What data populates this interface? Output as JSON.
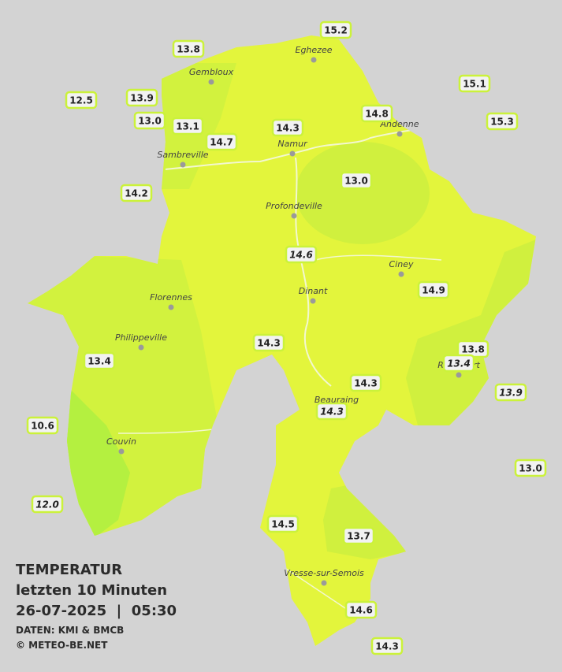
{
  "header": {
    "title": "TEMPERATUR",
    "subtitle": "letzten 10 Minuten",
    "timestamp": "26-07-2025  |  05:30",
    "source": "DATEN: KMI & BMCB",
    "copyright": "© METEO-BE.NET"
  },
  "cities": [
    {
      "name": "Eghezee"
    },
    {
      "name": "Gembloux"
    },
    {
      "name": "Andenne"
    },
    {
      "name": "Namur"
    },
    {
      "name": "Sambreville"
    },
    {
      "name": "Profondeville"
    },
    {
      "name": "Ciney"
    },
    {
      "name": "Dinant"
    },
    {
      "name": "Florennes"
    },
    {
      "name": "Philippeville"
    },
    {
      "name": "Beauraing"
    },
    {
      "name": "Rochefort"
    },
    {
      "name": "Couvin"
    },
    {
      "name": "Vresse-sur-Semois"
    }
  ],
  "stations": [
    {
      "label": "13.8"
    },
    {
      "label": "15.2"
    },
    {
      "label": "12.5"
    },
    {
      "label": "13.9"
    },
    {
      "label": "13.0"
    },
    {
      "label": "13.1"
    },
    {
      "label": "14.7"
    },
    {
      "label": "14.3"
    },
    {
      "label": "14.8"
    },
    {
      "label": "15.1"
    },
    {
      "label": "15.3"
    },
    {
      "label": "14.2"
    },
    {
      "label": "13.0"
    },
    {
      "label": "14.6",
      "italic": true
    },
    {
      "label": "14.9"
    },
    {
      "label": "14.3"
    },
    {
      "label": "13.4"
    },
    {
      "label": "13.8"
    },
    {
      "label": "13.4",
      "italic": true
    },
    {
      "label": "13.9",
      "italic": true
    },
    {
      "label": "14.3"
    },
    {
      "label": "14.3",
      "italic": true
    },
    {
      "label": "10.6"
    },
    {
      "label": "13.0"
    },
    {
      "label": "12.0",
      "italic": true
    },
    {
      "label": "14.5"
    },
    {
      "label": "13.7"
    },
    {
      "label": "14.6"
    },
    {
      "label": "14.3"
    }
  ]
}
